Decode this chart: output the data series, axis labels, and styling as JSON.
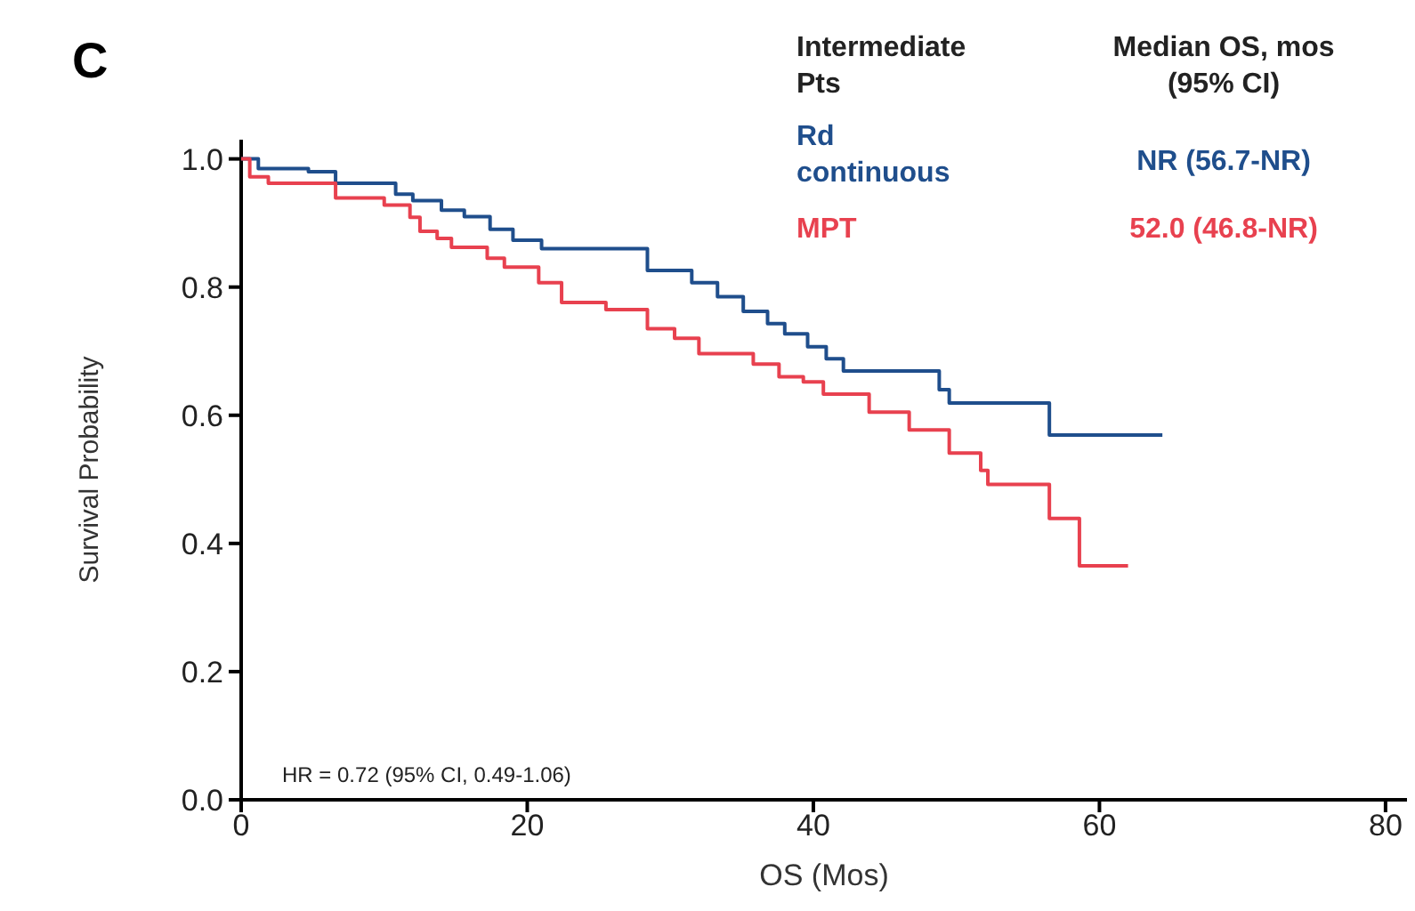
{
  "chart_data": {
    "type": "step",
    "title": "C",
    "xlabel": "OS (Mos)",
    "ylabel": "Survival Probability",
    "xlim": [
      0,
      81.5
    ],
    "ylim": [
      0,
      1.03
    ],
    "xticks": [
      0,
      20,
      40,
      60,
      80
    ],
    "yticks": [
      {
        "value": 0,
        "label": "0.0"
      },
      {
        "value": 0.2,
        "label": "0.2"
      },
      {
        "value": 0.4,
        "label": "0.4"
      },
      {
        "value": 0.6,
        "label": "0.6"
      },
      {
        "value": 0.8,
        "label": "0.8"
      },
      {
        "value": 1.0,
        "label": "1.0"
      }
    ],
    "grid": false,
    "legend": false,
    "series": [
      {
        "name": "Rd continuous",
        "color": "#1f4e8c",
        "x": [
          0,
          1.2,
          4.7,
          6.6,
          10.8,
          12,
          14,
          15.6,
          17.4,
          19,
          21,
          28.4,
          31.5,
          33.3,
          35.1,
          36.8,
          38,
          39.6,
          40.9,
          42.1,
          48.8,
          49.5,
          56.5,
          64.4
        ],
        "values": [
          1.0,
          0.985,
          0.98,
          0.962,
          0.945,
          0.935,
          0.92,
          0.91,
          0.89,
          0.873,
          0.86,
          0.826,
          0.807,
          0.785,
          0.762,
          0.743,
          0.727,
          0.707,
          0.688,
          0.669,
          0.64,
          0.619,
          0.569,
          0.569
        ]
      },
      {
        "name": "MPT",
        "color": "#e8414f",
        "x": [
          0,
          0.6,
          1.9,
          6.6,
          10,
          11.8,
          12.5,
          13.7,
          14.7,
          17.2,
          18.4,
          20.8,
          22.4,
          25.5,
          28.4,
          30.3,
          32,
          35.8,
          37.6,
          39.3,
          40.7,
          43.9,
          46.7,
          49.5,
          51.7,
          52.2,
          56.5,
          58.6,
          62
        ],
        "values": [
          1.0,
          0.972,
          0.962,
          0.939,
          0.928,
          0.909,
          0.887,
          0.876,
          0.862,
          0.845,
          0.831,
          0.807,
          0.776,
          0.765,
          0.735,
          0.72,
          0.696,
          0.68,
          0.66,
          0.652,
          0.633,
          0.605,
          0.577,
          0.541,
          0.514,
          0.492,
          0.439,
          0.365,
          0.365
        ]
      }
    ],
    "annotations": [
      "Intermediate Pts",
      "Median OS, mos (95% CI)",
      "NR (56.7-NR)",
      "52.0 (46.8-NR)",
      "HR = 0.72 (95% CI, 0.49-1.06)"
    ]
  }
}
